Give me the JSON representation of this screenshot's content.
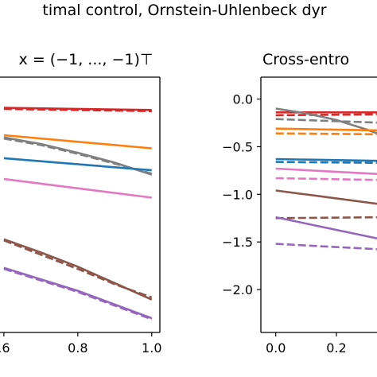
{
  "suptitle": "timal control, Ornstein-Uhlenbeck dyr",
  "left_title": "x = (−1, ..., −1)⊤",
  "right_title": "Cross-entro",
  "colors": {
    "red": "#d62728",
    "orange": "#ff7f0e",
    "gray": "#7f7f7f",
    "blue": "#1f77b4",
    "pink": "#e377c2",
    "brown": "#8c564b",
    "purple": "#9467bd"
  },
  "chart_data": [
    {
      "type": "line",
      "title": "x = (−1, ..., −1)⊤",
      "x_tick_labels": [
        ".6",
        "0.8",
        "1.0"
      ],
      "x_ticks": [
        0.6,
        0.8,
        1.0
      ],
      "xlim": [
        0.568,
        1.022
      ],
      "ylim": [
        -2.18,
        0.15
      ],
      "legend": "none",
      "grid": false,
      "series": [
        {
          "color": "red",
          "style": "solid",
          "x": [
            0.6,
            1.0
          ],
          "y": [
            -0.13,
            -0.15
          ]
        },
        {
          "color": "red",
          "style": "dashed",
          "x": [
            0.6,
            1.0
          ],
          "y": [
            -0.14,
            -0.16
          ]
        },
        {
          "color": "orange",
          "style": "solid",
          "x": [
            0.6,
            1.0
          ],
          "y": [
            -0.38,
            -0.5
          ]
        },
        {
          "color": "gray",
          "style": "solid",
          "x": [
            0.6,
            0.7,
            0.8,
            0.9,
            1.0
          ],
          "y": [
            -0.4,
            -0.46,
            -0.54,
            -0.63,
            -0.74
          ]
        },
        {
          "color": "gray",
          "style": "dashed",
          "x": [
            0.6,
            0.7,
            0.8,
            0.9,
            1.0
          ],
          "y": [
            -0.41,
            -0.47,
            -0.55,
            -0.64,
            -0.73
          ]
        },
        {
          "color": "blue",
          "style": "solid",
          "x": [
            0.6,
            1.0
          ],
          "y": [
            -0.59,
            -0.7
          ]
        },
        {
          "color": "pink",
          "style": "solid",
          "x": [
            0.6,
            1.0
          ],
          "y": [
            -0.78,
            -0.95
          ]
        },
        {
          "color": "brown",
          "style": "solid",
          "x": [
            0.6,
            0.7,
            0.8,
            0.9,
            1.0
          ],
          "y": [
            -1.33,
            -1.45,
            -1.58,
            -1.73,
            -1.88
          ]
        },
        {
          "color": "brown",
          "style": "dashed",
          "x": [
            0.6,
            0.7,
            0.8,
            0.9,
            1.0
          ],
          "y": [
            -1.34,
            -1.47,
            -1.6,
            -1.74,
            -1.86
          ]
        },
        {
          "color": "purple",
          "style": "solid",
          "x": [
            0.6,
            0.8,
            1.0
          ],
          "y": [
            -1.59,
            -1.8,
            -2.05
          ]
        },
        {
          "color": "purple",
          "style": "dashed",
          "x": [
            0.6,
            0.8,
            1.0
          ],
          "y": [
            -1.6,
            -1.81,
            -2.06
          ]
        }
      ]
    },
    {
      "type": "line",
      "title": "Cross-entro",
      "x_ticks": [
        0.0,
        0.2
      ],
      "x_tick_labels": [
        "0.0",
        "0.2"
      ],
      "y_ticks": [
        0.0,
        -0.5,
        -1.0,
        -1.5,
        -2.0
      ],
      "y_tick_labels": [
        "0.0",
        "−0.5",
        "−1.0",
        "−1.5",
        "−2.0"
      ],
      "xlim": [
        -0.049,
        0.36
      ],
      "ylim": [
        -2.45,
        0.23
      ],
      "legend": "none",
      "grid": false,
      "series": [
        {
          "color": "red",
          "style": "solid",
          "x": [
            0.0,
            0.36
          ],
          "y": [
            -0.14,
            -0.14
          ]
        },
        {
          "color": "red",
          "style": "dashed",
          "x": [
            0.0,
            0.36
          ],
          "y": [
            -0.17,
            -0.16
          ]
        },
        {
          "color": "gray",
          "style": "solid",
          "x": [
            0.0,
            0.1,
            0.2,
            0.3,
            0.36
          ],
          "y": [
            -0.1,
            -0.15,
            -0.22,
            -0.32,
            -0.39
          ]
        },
        {
          "color": "gray",
          "style": "dashed",
          "x": [
            0.0,
            0.36
          ],
          "y": [
            -0.21,
            -0.25
          ]
        },
        {
          "color": "orange",
          "style": "solid",
          "x": [
            0.0,
            0.36
          ],
          "y": [
            -0.31,
            -0.33
          ]
        },
        {
          "color": "orange",
          "style": "dashed",
          "x": [
            0.0,
            0.36
          ],
          "y": [
            -0.36,
            -0.37
          ]
        },
        {
          "color": "blue",
          "style": "solid",
          "x": [
            0.0,
            0.36
          ],
          "y": [
            -0.63,
            -0.65
          ]
        },
        {
          "color": "blue",
          "style": "dashed",
          "x": [
            0.0,
            0.36
          ],
          "y": [
            -0.66,
            -0.67
          ]
        },
        {
          "color": "pink",
          "style": "solid",
          "x": [
            0.0,
            0.36
          ],
          "y": [
            -0.73,
            -0.79
          ]
        },
        {
          "color": "pink",
          "style": "dashed",
          "x": [
            0.0,
            0.36
          ],
          "y": [
            -0.83,
            -0.85
          ]
        },
        {
          "color": "brown",
          "style": "solid",
          "x": [
            0.0,
            0.36
          ],
          "y": [
            -0.96,
            -1.11
          ]
        },
        {
          "color": "brown",
          "style": "dashed",
          "x": [
            0.0,
            0.36
          ],
          "y": [
            -1.25,
            -1.24
          ]
        },
        {
          "color": "purple",
          "style": "solid",
          "x": [
            0.0,
            0.36
          ],
          "y": [
            -1.24,
            -1.48
          ]
        },
        {
          "color": "purple",
          "style": "dashed",
          "x": [
            0.0,
            0.36
          ],
          "y": [
            -1.52,
            -1.58
          ]
        }
      ]
    }
  ]
}
